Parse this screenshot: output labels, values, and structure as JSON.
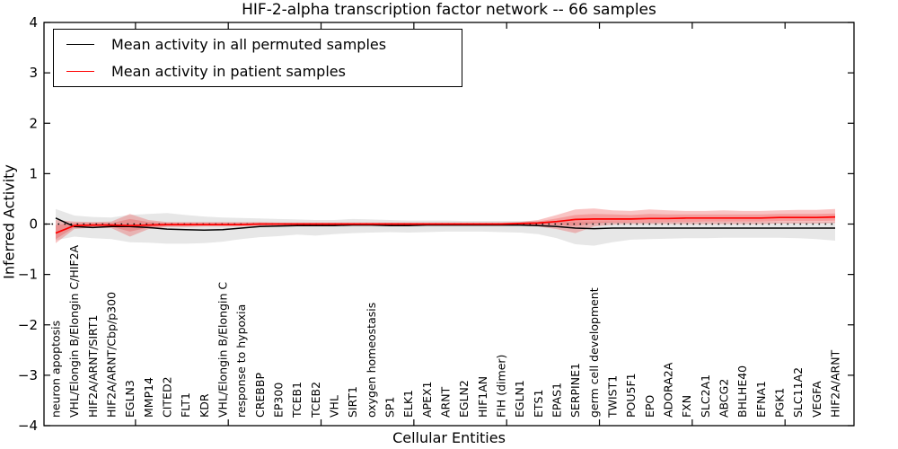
{
  "figure": {
    "title": "HIF-2-alpha transcription factor network -- 66 samples",
    "xlabel": "Cellular Entities",
    "ylabel": "Inferred Activity"
  },
  "chart_data": {
    "type": "line",
    "title": "HIF-2-alpha transcription factor network -- 66 samples",
    "xlabel": "Cellular Entities",
    "ylabel": "Inferred Activity",
    "ylim": [
      -4,
      4
    ],
    "yticks": [
      -4,
      -3,
      -2,
      -1,
      0,
      1,
      2,
      3,
      4
    ],
    "ytick_labels": [
      "−4",
      "−3",
      "−2",
      "−1",
      "0",
      "1",
      "2",
      "3",
      "4"
    ],
    "xtick_index_positions": [
      4.3,
      9.3,
      14.3,
      19.3,
      24.3,
      29.3,
      34.3,
      39.3
    ],
    "grid": false,
    "legend_position": "upper left",
    "zero_reference_line": "dotted black at y=0",
    "colors": {
      "permuted_line": "#000000",
      "patient_line": "#ff0000",
      "permuted_band": "#e7e7e7",
      "patient_band_outer": "rgba(235,60,60,0.30)",
      "patient_band_inner": "rgba(235,40,40,0.25)"
    },
    "categories": [
      "neuron apoptosis",
      "VHL/Elongin B/Elongin C/HIF2A",
      "HIF2A/ARNT/SIRT1",
      "HIF2A/ARNT/Cbp/p300",
      "EGLN3",
      "MMP14",
      "CITED2",
      "FLT1",
      "KDR",
      "VHL/Elongin B/Elongin C",
      "response to hypoxia",
      "CREBBP",
      "EP300",
      "TCEB1",
      "TCEB2",
      "VHL",
      "SIRT1",
      "oxygen homeostasis",
      "SP1",
      "ELK1",
      "APEX1",
      "ARNT",
      "EGLN2",
      "HIF1AN",
      "FIH (dimer)",
      "EGLN1",
      "ETS1",
      "EPAS1",
      "SERPINE1",
      "germ cell development",
      "TWIST1",
      "POU5F1",
      "EPO",
      "ADORA2A",
      "FXN",
      "SLC2A1",
      "ABCG2",
      "BHLHE40",
      "EFNA1",
      "PGK1",
      "SLC11A2",
      "VEGFA",
      "HIF2A/ARNT"
    ],
    "series": [
      {
        "name": "Mean activity in all permuted samples",
        "color": "#000000",
        "values": [
          0.12,
          -0.05,
          -0.07,
          -0.05,
          -0.05,
          -0.07,
          -0.1,
          -0.11,
          -0.12,
          -0.11,
          -0.08,
          -0.05,
          -0.04,
          -0.03,
          -0.03,
          -0.03,
          -0.02,
          -0.02,
          -0.03,
          -0.03,
          -0.02,
          -0.02,
          -0.02,
          -0.02,
          -0.02,
          -0.02,
          -0.03,
          -0.05,
          -0.08,
          -0.09,
          -0.08,
          -0.08,
          -0.08,
          -0.08,
          -0.08,
          -0.08,
          -0.08,
          -0.08,
          -0.08,
          -0.08,
          -0.08,
          -0.08,
          -0.08
        ]
      },
      {
        "name": "Mean activity in patient samples",
        "color": "#ff0000",
        "values": [
          -0.18,
          -0.03,
          -0.02,
          -0.02,
          -0.03,
          -0.02,
          -0.01,
          -0.01,
          -0.01,
          -0.01,
          -0.01,
          0,
          0,
          0,
          0,
          0,
          0,
          0,
          0,
          0,
          0,
          0,
          0,
          0,
          0,
          0.01,
          0.02,
          0.05,
          0.09,
          0.1,
          0.1,
          0.1,
          0.11,
          0.11,
          0.12,
          0.12,
          0.12,
          0.12,
          0.12,
          0.13,
          0.13,
          0.13,
          0.14
        ]
      }
    ],
    "bands": [
      {
        "name": "permuted-samples-spread",
        "color": "#e7e7e7",
        "upper": [
          0.3,
          0.17,
          0.14,
          0.13,
          0.18,
          0.2,
          0.22,
          0.18,
          0.15,
          0.13,
          0.12,
          0.11,
          0.1,
          0.09,
          0.08,
          0.08,
          0.1,
          0.09,
          0.08,
          0.07,
          0.07,
          0.07,
          0.06,
          0.06,
          0.06,
          0.06,
          0.06,
          0.05,
          0.05,
          0.05,
          0.05,
          0.04,
          0.04,
          0.04,
          0.04,
          0.04,
          0.04,
          0.04,
          0.04,
          0.04,
          0.04,
          0.04,
          0.05
        ],
        "lower": [
          -0.32,
          -0.25,
          -0.28,
          -0.3,
          -0.36,
          -0.37,
          -0.39,
          -0.39,
          -0.38,
          -0.35,
          -0.3,
          -0.26,
          -0.24,
          -0.21,
          -0.23,
          -0.2,
          -0.18,
          -0.17,
          -0.16,
          -0.17,
          -0.16,
          -0.15,
          -0.15,
          -0.15,
          -0.16,
          -0.17,
          -0.2,
          -0.28,
          -0.4,
          -0.43,
          -0.36,
          -0.31,
          -0.3,
          -0.29,
          -0.28,
          -0.28,
          -0.27,
          -0.27,
          -0.27,
          -0.27,
          -0.28,
          -0.3,
          -0.33
        ]
      },
      {
        "name": "patient-samples-spread-outer",
        "color": "rgba(235,60,60,0.30)",
        "upper": [
          0.08,
          0.05,
          0.04,
          0.05,
          0.2,
          0.08,
          0.04,
          0.04,
          0.04,
          0.04,
          0.04,
          0.04,
          0.03,
          0.03,
          0.03,
          0.03,
          0.03,
          0.03,
          0.03,
          0.03,
          0.03,
          0.03,
          0.03,
          0.03,
          0.03,
          0.04,
          0.08,
          0.18,
          0.29,
          0.31,
          0.27,
          0.26,
          0.29,
          0.27,
          0.26,
          0.26,
          0.27,
          0.26,
          0.26,
          0.27,
          0.28,
          0.28,
          0.3
        ],
        "lower": [
          -0.38,
          -0.1,
          -0.07,
          -0.08,
          -0.25,
          -0.1,
          -0.06,
          -0.06,
          -0.05,
          -0.05,
          -0.05,
          -0.04,
          -0.04,
          -0.04,
          -0.03,
          -0.03,
          -0.03,
          -0.03,
          -0.03,
          -0.03,
          -0.03,
          -0.03,
          -0.03,
          -0.03,
          -0.03,
          -0.03,
          -0.05,
          -0.1,
          -0.18,
          -0.05,
          -0.01,
          0,
          0,
          0,
          0,
          0,
          0,
          0,
          0,
          0.01,
          0.01,
          0.01,
          0.02
        ]
      },
      {
        "name": "patient-samples-spread-inner",
        "color": "rgba(235,40,40,0.25)",
        "upper": [
          -0.02,
          0.02,
          0.02,
          0.02,
          0.1,
          0.04,
          0.02,
          0.02,
          0.02,
          0.02,
          0.02,
          0.02,
          0.02,
          0.02,
          0.02,
          0.02,
          0.02,
          0.02,
          0.02,
          0.02,
          0.02,
          0.02,
          0.02,
          0.02,
          0.02,
          0.03,
          0.05,
          0.11,
          0.18,
          0.2,
          0.19,
          0.18,
          0.2,
          0.19,
          0.19,
          0.19,
          0.19,
          0.19,
          0.19,
          0.2,
          0.2,
          0.2,
          0.21
        ],
        "lower": [
          -0.3,
          -0.07,
          -0.05,
          -0.05,
          -0.15,
          -0.07,
          -0.04,
          -0.04,
          -0.03,
          -0.03,
          -0.03,
          -0.02,
          -0.02,
          -0.02,
          -0.02,
          -0.02,
          -0.02,
          -0.02,
          -0.02,
          -0.02,
          -0.02,
          -0.02,
          -0.02,
          -0.02,
          -0.02,
          -0.02,
          -0.02,
          -0.02,
          -0.04,
          0.01,
          0.03,
          0.03,
          0.03,
          0.04,
          0.04,
          0.05,
          0.05,
          0.05,
          0.05,
          0.06,
          0.06,
          0.06,
          0.07
        ]
      }
    ]
  }
}
